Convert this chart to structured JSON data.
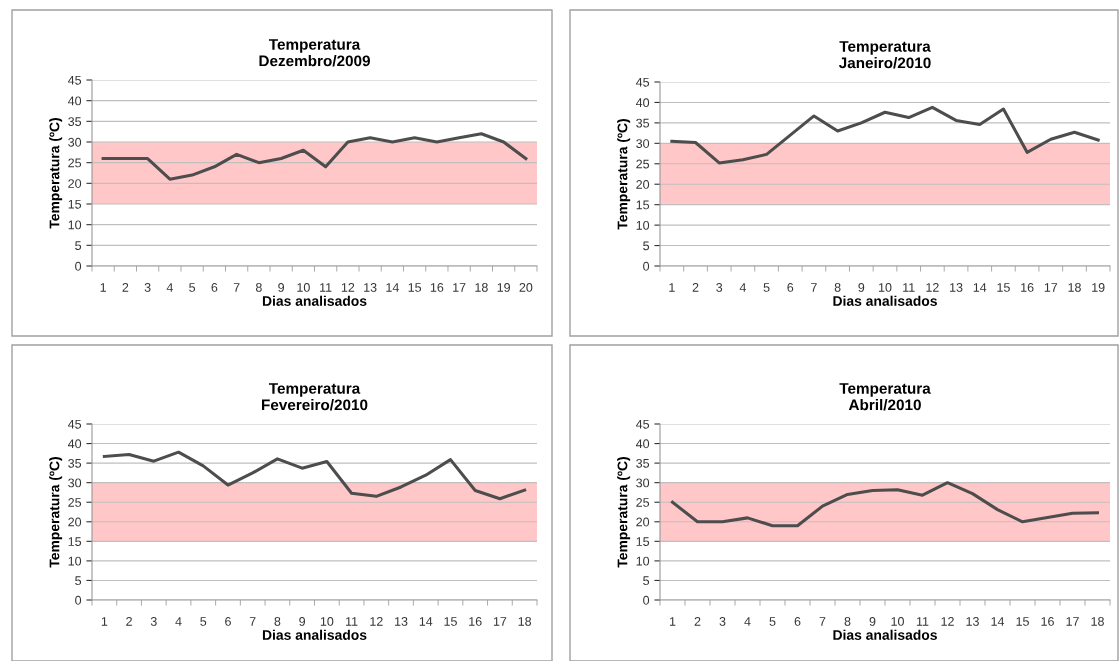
{
  "chart_data": [
    {
      "type": "line",
      "title": "Temperatura\nDezembro/2009",
      "xlabel": "Dias analisados",
      "ylabel": "Temperatura (ºC)",
      "categories": [
        "1",
        "2",
        "3",
        "4",
        "5",
        "6",
        "7",
        "8",
        "9",
        "10",
        "11",
        "12",
        "13",
        "14",
        "15",
        "16",
        "17",
        "18",
        "19",
        "20"
      ],
      "series": [
        {
          "color": "#4d4d4d",
          "values": [
            26,
            26,
            26,
            21,
            22,
            24,
            27,
            25,
            26,
            28,
            24,
            30,
            31,
            30,
            31,
            30,
            31,
            32,
            30,
            26
          ]
        }
      ],
      "ylim": [
        0,
        45
      ],
      "yticks": [
        0,
        5,
        10,
        15,
        20,
        25,
        30,
        35,
        40,
        45
      ],
      "grid": "y",
      "legend": false,
      "marker": "none",
      "line_style": "solid",
      "bands": [
        {
          "axis": "y",
          "from": 15,
          "to": 30,
          "color": "#ffc7c7"
        }
      ]
    },
    {
      "type": "line",
      "title": "Temperatura\nJaneiro/2010",
      "xlabel": "Dias analisados",
      "ylabel": "Temperatura (ºC)",
      "categories": [
        "1",
        "2",
        "3",
        "4",
        "5",
        "6",
        "7",
        "8",
        "9",
        "10",
        "11",
        "12",
        "13",
        "14",
        "15",
        "16",
        "17",
        "18",
        "19"
      ],
      "series": [
        {
          "color": "#4d4d4d",
          "values": [
            30.5,
            30.2,
            25.2,
            26,
            27.3,
            32,
            36.7,
            33,
            35,
            37.6,
            36.3,
            38.8,
            35.6,
            34.6,
            38.4,
            27.8,
            31,
            32.7,
            30.8
          ]
        }
      ],
      "ylim": [
        0,
        45
      ],
      "yticks": [
        0,
        5,
        10,
        15,
        20,
        25,
        30,
        35,
        40,
        45
      ],
      "grid": "y",
      "legend": false,
      "marker": "none",
      "line_style": "solid",
      "bands": [
        {
          "axis": "y",
          "from": 15,
          "to": 30,
          "color": "#ffc7c7"
        }
      ]
    },
    {
      "type": "line",
      "title": "Temperatura\nFevereiro/2010",
      "xlabel": "Dias analisados",
      "ylabel": "Temperatura (ºC)",
      "categories": [
        "1",
        "2",
        "3",
        "4",
        "5",
        "6",
        "7",
        "8",
        "9",
        "10",
        "11",
        "12",
        "13",
        "14",
        "15",
        "16",
        "17",
        "18"
      ],
      "series": [
        {
          "color": "#4d4d4d",
          "values": [
            36.7,
            37.2,
            35.5,
            37.8,
            34.3,
            29.4,
            32.5,
            36.1,
            33.7,
            35.4,
            27.3,
            26.5,
            28.9,
            31.9,
            35.9,
            28,
            25.9,
            28.1
          ]
        }
      ],
      "ylim": [
        0,
        45
      ],
      "yticks": [
        0,
        5,
        10,
        15,
        20,
        25,
        30,
        35,
        40,
        45
      ],
      "grid": "y",
      "legend": false,
      "marker": "none",
      "line_style": "solid",
      "bands": [
        {
          "axis": "y",
          "from": 15,
          "to": 30,
          "color": "#ffc7c7"
        }
      ]
    },
    {
      "type": "line",
      "title": "Temperatura\nAbril/2010",
      "xlabel": "Dias analisados",
      "ylabel": "Temperatura (ºC)",
      "categories": [
        "1",
        "2",
        "3",
        "4",
        "5",
        "6",
        "7",
        "8",
        "9",
        "10",
        "11",
        "12",
        "13",
        "14",
        "15",
        "16",
        "17",
        "18"
      ],
      "series": [
        {
          "color": "#4d4d4d",
          "values": [
            25,
            20,
            20,
            21,
            19,
            19,
            24,
            27,
            28,
            28.2,
            26.8,
            30,
            27.2,
            23.1,
            20,
            21.1,
            22.2,
            22.3
          ]
        }
      ],
      "ylim": [
        0,
        45
      ],
      "yticks": [
        0,
        5,
        10,
        15,
        20,
        25,
        30,
        35,
        40,
        45
      ],
      "grid": "y",
      "legend": false,
      "marker": "none",
      "line_style": "solid",
      "bands": [
        {
          "axis": "y",
          "from": 15,
          "to": 30,
          "color": "#ffc7c7"
        }
      ]
    }
  ]
}
